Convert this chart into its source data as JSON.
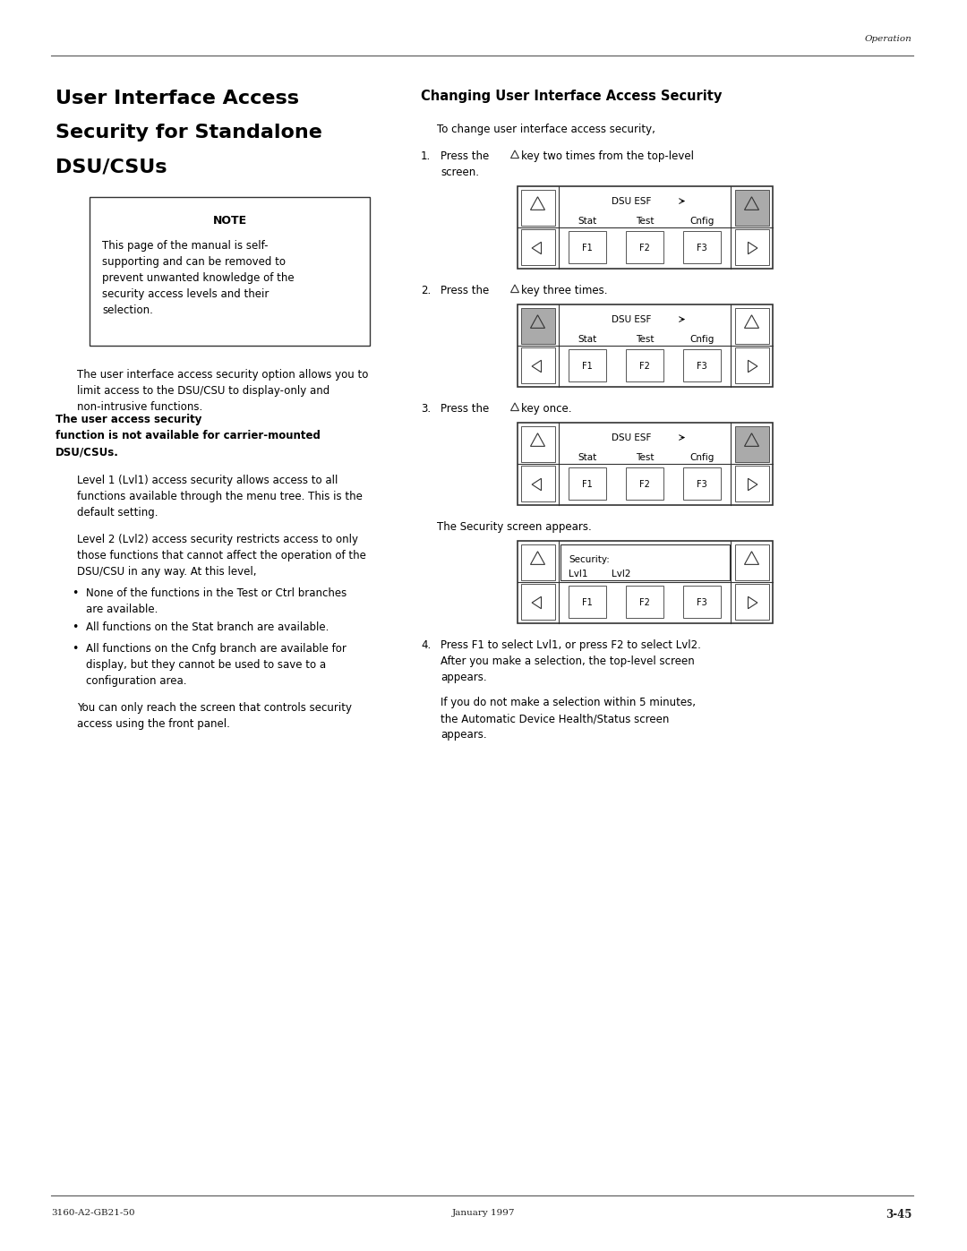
{
  "page_width": 10.8,
  "page_height": 13.97,
  "bg_color": "#ffffff",
  "header_text": "Operation",
  "footer_left": "3160-A2-GB21-50",
  "footer_center": "January 1997",
  "footer_right": "3-45",
  "left_title_line1": "User Interface Access",
  "left_title_line2": "Security for Standalone",
  "left_title_line3": "DSU/CSUs",
  "note_title": "NOTE",
  "note_body_line1": "This page of the manual is self-",
  "note_body_line2": "supporting and can be removed to",
  "note_body_line3": "prevent unwanted knowledge of the",
  "note_body_line4": "security access levels and their",
  "note_body_line5": "selection.",
  "body_para1_normal": "The user interface access security option allows you to\nlimit access to the DSU/CSU to display-only and\nnon-intrusive functions.",
  "body_para1_bold": "The user access security\nfunction is not available for carrier-mounted\nDSU/CSUs.",
  "body_para2": "Level 1 (Lvl1) access security allows access to all\nfunctions available through the menu tree. This is the\ndefault setting.",
  "body_para3": "Level 2 (Lvl2) access security restricts access to only\nthose functions that cannot affect the operation of the\nDSU/CSU in any way. At this level,",
  "bullet1": "None of the functions in the Test or Ctrl branches\nare available.",
  "bullet2": "All functions on the Stat branch are available.",
  "bullet3": "All functions on the Cnfg branch are available for\ndisplay, but they cannot be used to save to a\nconfiguration area.",
  "body_para4": "You can only reach the screen that controls security\naccess using the front panel.",
  "right_title": "Changing User Interface Access Security",
  "right_intro": "To change user interface access security,",
  "step1": "Press the",
  "step1b": "key two times from the top-level\nscreen.",
  "step2": "Press the",
  "step2b": "key three times.",
  "step3": "Press the",
  "step3b": "key once.",
  "step3_after": "The Security screen appears.",
  "step4a": "Press F1 to select Lvl1, or press F2 to select Lvl2.",
  "step4b": "After you make a selection, the top-level screen",
  "step4c": "appears.",
  "step4d": "If you do not make a selection within 5 minutes,",
  "step4e": "the Automatic Device Health/Status screen",
  "step4f": "appears."
}
